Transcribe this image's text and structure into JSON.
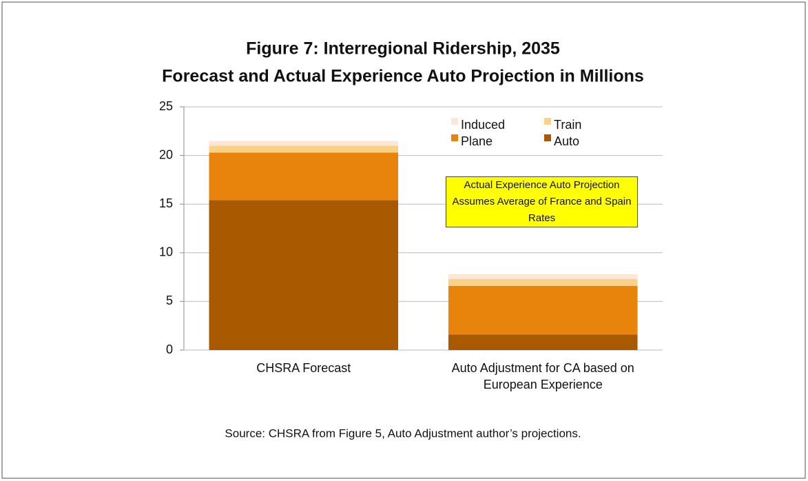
{
  "chart_data": {
    "type": "stacked_bar",
    "title": "Figure 7: Interregional Ridership, 2035",
    "subtitle": "Forecast and Actual Experience Auto Projection in Millions",
    "categories": [
      "CHSRA Forecast",
      "Auto Adjustment for CA based on European Experience"
    ],
    "series": [
      {
        "name": "Auto",
        "color": "#a95a00",
        "values": [
          15.4,
          1.6
        ]
      },
      {
        "name": "Plane",
        "color": "#e8840c",
        "values": [
          4.9,
          5.0
        ]
      },
      {
        "name": "Train",
        "color": "#f9d187",
        "values": [
          0.7,
          0.7
        ]
      },
      {
        "name": "Induced",
        "color": "#fbe6d8",
        "values": [
          0.5,
          0.5
        ]
      }
    ],
    "ylim": [
      0,
      25
    ],
    "yticks": [
      0,
      5,
      10,
      15,
      20,
      25
    ],
    "grid": true,
    "legend": "top-right",
    "annotation": "Actual Experience Auto Projection Assumes Average of France and Spain Rates",
    "source": "Source: CHSRA from Figure 5, Auto Adjustment author’s projections."
  }
}
